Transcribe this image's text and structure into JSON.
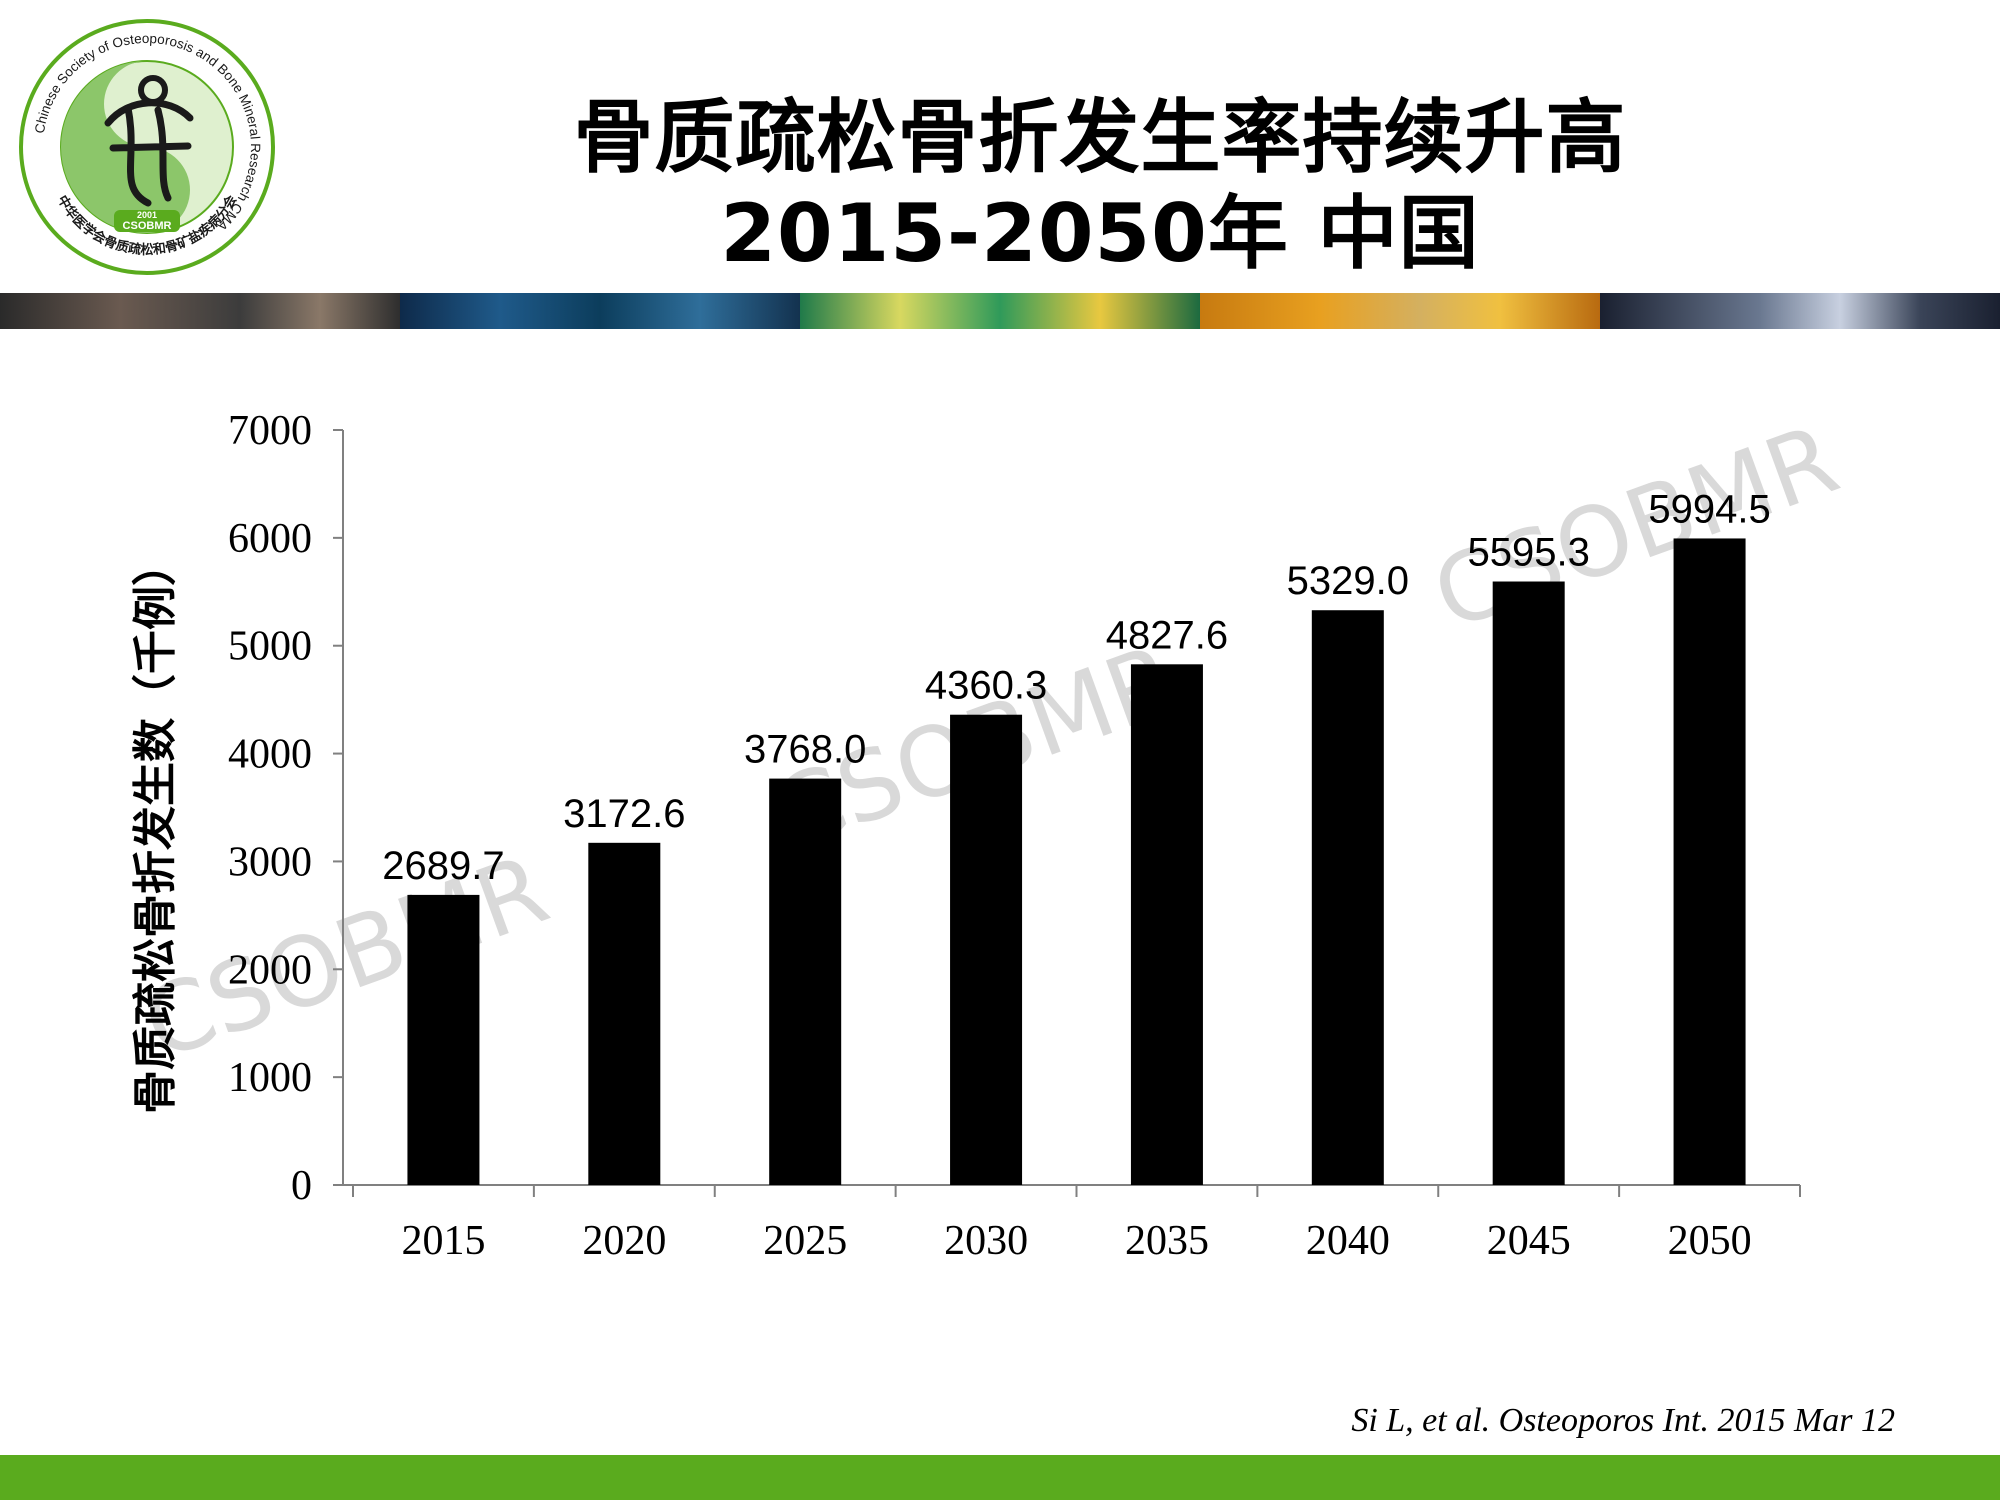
{
  "logo": {
    "ring_text": "Chinese Society of Osteoporosis and Bone Mineral Research CMA",
    "chinese_text": "中华医学会骨质疏松和骨矿盐疾病分会",
    "year": "2001",
    "abbr": "CSOBMR",
    "colors": {
      "green": "#5aab1e",
      "dark": "#1a1a1a"
    }
  },
  "title": {
    "line1": "骨质疏松骨折发生率持续升高",
    "line2": "2015-2050年 中国"
  },
  "watermark": "CSOBMR",
  "chart_data": {
    "type": "bar",
    "categories": [
      "2015",
      "2020",
      "2025",
      "2030",
      "2035",
      "2040",
      "2045",
      "2050"
    ],
    "values": [
      2689.7,
      3172.6,
      3768.0,
      4360.3,
      4827.6,
      5329.0,
      5595.3,
      5994.5
    ],
    "data_labels": [
      "2689.7",
      "3172.6",
      "3768.0",
      "4360.3",
      "4827.6",
      "5329.0",
      "5595.3",
      "5994.5"
    ],
    "ylabel": "骨质疏松骨折发生数（千例）",
    "ylim": [
      0,
      7000
    ],
    "yticks": [
      "0",
      "1000",
      "2000",
      "3000",
      "4000",
      "5000",
      "6000",
      "7000"
    ],
    "grid": false,
    "bar_color": "#000000"
  },
  "citation": "Si L, et al. Osteoporos Int. 2015 Mar 12",
  "colors": {
    "footer_bar": "#5aab1e",
    "text": "#000000",
    "watermark": "#c8c8c8"
  }
}
